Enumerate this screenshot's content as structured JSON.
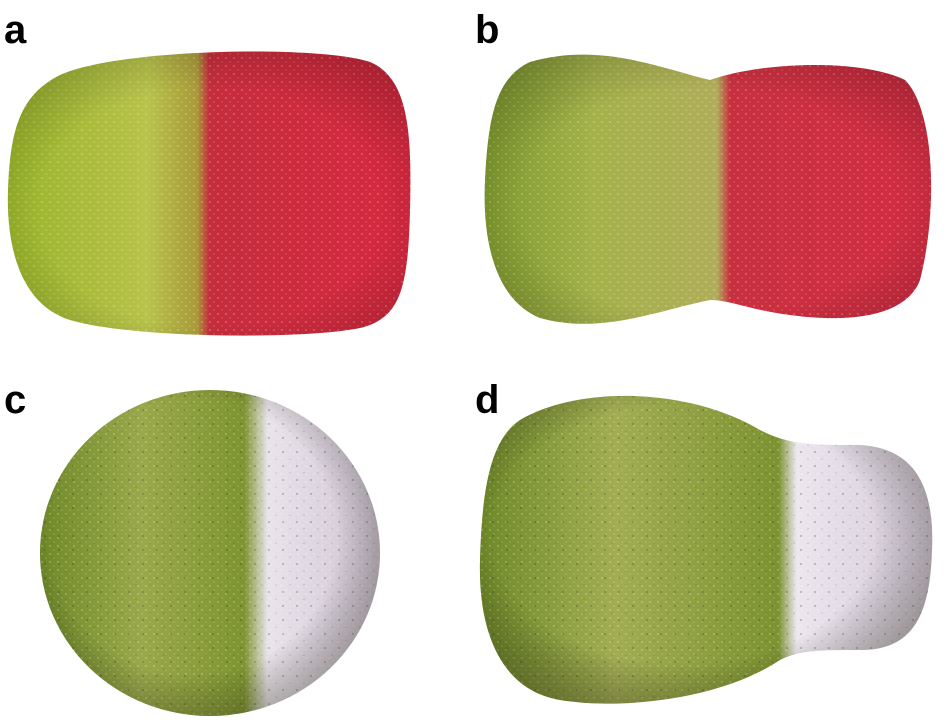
{
  "panels": [
    {
      "label": "a",
      "colors": [
        "#9bb22e",
        "#d0243a"
      ]
    },
    {
      "label": "b",
      "colors": [
        "#8fa731",
        "#cf2a3d"
      ]
    },
    {
      "label": "c",
      "colors": [
        "#7f962f",
        "#efe9ee"
      ]
    },
    {
      "label": "d",
      "colors": [
        "#83992e",
        "#f0ebf0"
      ]
    }
  ]
}
